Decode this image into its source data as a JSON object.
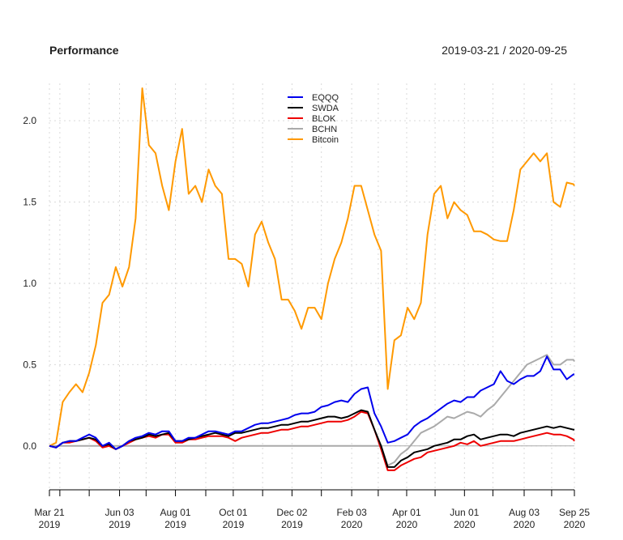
{
  "chart_data": {
    "type": "line",
    "title": "Performance",
    "date_range_label": "2019-03-21 / 2020-09-25",
    "xlabel": "",
    "ylabel": "",
    "ylim": [
      -0.27,
      2.23
    ],
    "grid": true,
    "legend_position": "top-center",
    "yticks": [
      0.0,
      0.5,
      1.0,
      1.5,
      2.0
    ],
    "ytick_labels": [
      "0.0",
      "0.5",
      "1.0",
      "1.5",
      "2.0"
    ],
    "xticks": [
      {
        "date": "2019-03-21",
        "label1": "Mar 21",
        "label2": "2019"
      },
      {
        "date": "2019-04-01",
        "label1": "",
        "label2": ""
      },
      {
        "date": "2019-05-02",
        "label1": "",
        "label2": ""
      },
      {
        "date": "2019-06-03",
        "label1": "Jun 03",
        "label2": "2019"
      },
      {
        "date": "2019-07-01",
        "label1": "",
        "label2": ""
      },
      {
        "date": "2019-08-01",
        "label1": "Aug 01",
        "label2": "2019"
      },
      {
        "date": "2019-09-02",
        "label1": "",
        "label2": ""
      },
      {
        "date": "2019-10-01",
        "label1": "Oct 01",
        "label2": "2019"
      },
      {
        "date": "2019-11-01",
        "label1": "",
        "label2": ""
      },
      {
        "date": "2019-12-02",
        "label1": "Dec 02",
        "label2": "2019"
      },
      {
        "date": "2020-01-02",
        "label1": "",
        "label2": ""
      },
      {
        "date": "2020-02-03",
        "label1": "Feb 03",
        "label2": "2020"
      },
      {
        "date": "2020-03-02",
        "label1": "",
        "label2": ""
      },
      {
        "date": "2020-04-01",
        "label1": "Apr 01",
        "label2": "2020"
      },
      {
        "date": "2020-05-01",
        "label1": "",
        "label2": ""
      },
      {
        "date": "2020-06-01",
        "label1": "Jun 01",
        "label2": "2020"
      },
      {
        "date": "2020-07-01",
        "label1": "",
        "label2": ""
      },
      {
        "date": "2020-08-03",
        "label1": "Aug 03",
        "label2": "2020"
      },
      {
        "date": "2020-09-01",
        "label1": "",
        "label2": ""
      },
      {
        "date": "2020-09-25",
        "label1": "Sep 25",
        "label2": "2020"
      }
    ],
    "x": [
      "2019-03-21",
      "2019-03-28",
      "2019-04-04",
      "2019-04-11",
      "2019-04-18",
      "2019-04-25",
      "2019-05-02",
      "2019-05-09",
      "2019-05-16",
      "2019-05-23",
      "2019-05-30",
      "2019-06-06",
      "2019-06-13",
      "2019-06-20",
      "2019-06-27",
      "2019-07-04",
      "2019-07-11",
      "2019-07-18",
      "2019-07-25",
      "2019-08-01",
      "2019-08-08",
      "2019-08-15",
      "2019-08-22",
      "2019-08-29",
      "2019-09-05",
      "2019-09-12",
      "2019-09-19",
      "2019-09-26",
      "2019-10-03",
      "2019-10-10",
      "2019-10-17",
      "2019-10-24",
      "2019-10-31",
      "2019-11-07",
      "2019-11-14",
      "2019-11-21",
      "2019-11-28",
      "2019-12-05",
      "2019-12-12",
      "2019-12-19",
      "2019-12-26",
      "2020-01-02",
      "2020-01-09",
      "2020-01-16",
      "2020-01-23",
      "2020-01-30",
      "2020-02-06",
      "2020-02-13",
      "2020-02-20",
      "2020-02-27",
      "2020-03-05",
      "2020-03-12",
      "2020-03-19",
      "2020-03-26",
      "2020-04-02",
      "2020-04-09",
      "2020-04-16",
      "2020-04-23",
      "2020-04-30",
      "2020-05-07",
      "2020-05-14",
      "2020-05-21",
      "2020-05-28",
      "2020-06-04",
      "2020-06-11",
      "2020-06-18",
      "2020-06-25",
      "2020-07-02",
      "2020-07-09",
      "2020-07-16",
      "2020-07-23",
      "2020-07-30",
      "2020-08-06",
      "2020-08-13",
      "2020-08-20",
      "2020-08-27",
      "2020-09-03",
      "2020-09-10",
      "2020-09-17",
      "2020-09-24",
      "2020-09-25"
    ],
    "series": [
      {
        "name": "EQQQ",
        "color": "#0000ee",
        "values": [
          0,
          -0.01,
          0.02,
          0.03,
          0.03,
          0.05,
          0.07,
          0.05,
          0.0,
          0.02,
          -0.02,
          0.0,
          0.03,
          0.05,
          0.06,
          0.08,
          0.07,
          0.09,
          0.09,
          0.03,
          0.03,
          0.05,
          0.05,
          0.07,
          0.09,
          0.09,
          0.08,
          0.07,
          0.09,
          0.09,
          0.11,
          0.13,
          0.14,
          0.14,
          0.15,
          0.16,
          0.17,
          0.19,
          0.2,
          0.2,
          0.21,
          0.24,
          0.25,
          0.27,
          0.28,
          0.27,
          0.32,
          0.35,
          0.36,
          0.2,
          0.12,
          0.02,
          0.03,
          0.05,
          0.07,
          0.12,
          0.15,
          0.17,
          0.2,
          0.23,
          0.26,
          0.28,
          0.27,
          0.3,
          0.3,
          0.34,
          0.36,
          0.38,
          0.46,
          0.4,
          0.38,
          0.41,
          0.43,
          0.43,
          0.46,
          0.55,
          0.47,
          0.47,
          0.41,
          0.44,
          0.44
        ]
      },
      {
        "name": "SWDA",
        "color": "#000000",
        "values": [
          0,
          -0.01,
          0.02,
          0.03,
          0.03,
          0.04,
          0.05,
          0.04,
          0.0,
          0.01,
          -0.02,
          0.0,
          0.03,
          0.04,
          0.05,
          0.07,
          0.06,
          0.07,
          0.08,
          0.03,
          0.03,
          0.04,
          0.05,
          0.06,
          0.07,
          0.08,
          0.07,
          0.06,
          0.08,
          0.08,
          0.09,
          0.1,
          0.11,
          0.11,
          0.12,
          0.13,
          0.13,
          0.14,
          0.15,
          0.15,
          0.16,
          0.17,
          0.18,
          0.18,
          0.17,
          0.18,
          0.2,
          0.22,
          0.21,
          0.1,
          0.0,
          -0.13,
          -0.13,
          -0.09,
          -0.07,
          -0.04,
          -0.03,
          -0.02,
          0.0,
          0.01,
          0.02,
          0.04,
          0.04,
          0.06,
          0.07,
          0.04,
          0.05,
          0.06,
          0.07,
          0.07,
          0.06,
          0.08,
          0.09,
          0.1,
          0.11,
          0.12,
          0.11,
          0.12,
          0.11,
          0.1,
          0.1
        ]
      },
      {
        "name": "BLOK",
        "color": "#ee0000",
        "values": [
          0,
          -0.01,
          0.02,
          0.02,
          0.03,
          0.04,
          0.05,
          0.03,
          -0.01,
          0.0,
          -0.02,
          0.0,
          0.02,
          0.04,
          0.05,
          0.06,
          0.05,
          0.07,
          0.07,
          0.02,
          0.02,
          0.04,
          0.04,
          0.05,
          0.06,
          0.06,
          0.06,
          0.05,
          0.03,
          0.05,
          0.06,
          0.07,
          0.08,
          0.08,
          0.09,
          0.1,
          0.1,
          0.11,
          0.12,
          0.12,
          0.13,
          0.14,
          0.15,
          0.15,
          0.15,
          0.16,
          0.18,
          0.21,
          0.2,
          0.1,
          -0.02,
          -0.15,
          -0.15,
          -0.12,
          -0.1,
          -0.08,
          -0.07,
          -0.04,
          -0.03,
          -0.02,
          -0.01,
          0.0,
          0.02,
          0.01,
          0.03,
          0.0,
          0.01,
          0.02,
          0.03,
          0.03,
          0.03,
          0.04,
          0.05,
          0.06,
          0.07,
          0.08,
          0.07,
          0.07,
          0.06,
          0.04,
          0.03
        ]
      },
      {
        "name": "BCHN",
        "color": "#aaaaaa",
        "values": [
          0,
          0,
          0,
          0,
          0,
          0,
          0,
          0,
          0,
          0,
          0,
          0,
          0,
          0,
          0,
          0,
          0,
          0,
          0,
          0,
          0,
          0,
          0,
          0,
          0,
          0,
          0,
          0,
          0,
          0,
          0,
          0,
          0,
          0,
          0,
          0,
          0,
          0,
          0,
          0,
          0,
          0,
          0,
          0,
          0,
          0,
          0,
          0,
          0,
          0,
          0,
          -0.12,
          -0.1,
          -0.05,
          -0.02,
          0.03,
          0.08,
          0.1,
          0.12,
          0.15,
          0.18,
          0.17,
          0.19,
          0.21,
          0.2,
          0.18,
          0.22,
          0.25,
          0.3,
          0.35,
          0.4,
          0.45,
          0.5,
          0.52,
          0.54,
          0.56,
          0.5,
          0.5,
          0.53,
          0.53,
          0.52
        ]
      },
      {
        "name": "Bitcoin",
        "color": "#ff9900",
        "values": [
          0,
          0.02,
          0.27,
          0.33,
          0.38,
          0.33,
          0.45,
          0.62,
          0.88,
          0.93,
          1.1,
          0.98,
          1.1,
          1.4,
          2.2,
          1.85,
          1.8,
          1.6,
          1.45,
          1.75,
          1.95,
          1.55,
          1.6,
          1.5,
          1.7,
          1.6,
          1.55,
          1.15,
          1.15,
          1.12,
          0.98,
          1.3,
          1.38,
          1.25,
          1.15,
          0.9,
          0.9,
          0.83,
          0.72,
          0.85,
          0.85,
          0.78,
          1.0,
          1.15,
          1.25,
          1.4,
          1.6,
          1.6,
          1.45,
          1.3,
          1.2,
          0.35,
          0.65,
          0.68,
          0.85,
          0.78,
          0.88,
          1.3,
          1.55,
          1.6,
          1.4,
          1.5,
          1.45,
          1.42,
          1.32,
          1.32,
          1.3,
          1.27,
          1.26,
          1.26,
          1.45,
          1.7,
          1.75,
          1.8,
          1.75,
          1.8,
          1.5,
          1.47,
          1.62,
          1.61,
          1.6
        ]
      }
    ]
  }
}
